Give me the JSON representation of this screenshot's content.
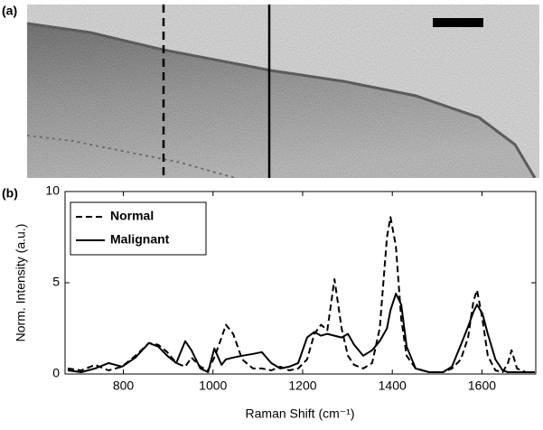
{
  "panel_a": {
    "label": "(a)"
  },
  "chart_data": {
    "type": "line",
    "panel_label": "(b)",
    "xlabel": "Raman Shift (cm⁻¹)",
    "ylabel": "Norm. Intensity (a.u.)",
    "x": [
      676,
      706,
      737,
      767,
      797,
      827,
      857,
      878,
      898,
      918,
      938,
      952,
      972,
      989,
      1003,
      1019,
      1029,
      1045,
      1065,
      1089,
      1109,
      1130,
      1150,
      1170,
      1190,
      1210,
      1226,
      1241,
      1255,
      1271,
      1287,
      1301,
      1315,
      1335,
      1355,
      1372,
      1388,
      1396,
      1408,
      1420,
      1432,
      1452,
      1482,
      1513,
      1533,
      1553,
      1569,
      1581,
      1589,
      1601,
      1613,
      1630,
      1646,
      1658,
      1666,
      1678,
      1698,
      1718
    ],
    "series": [
      {
        "name": "Normal",
        "color": "#000000",
        "linestyle": "dashed",
        "values": [
          0.3,
          0.2,
          0.5,
          0.2,
          0.4,
          1.0,
          1.7,
          1.6,
          1.2,
          0.6,
          0.4,
          0.9,
          0.4,
          0.2,
          0.9,
          2.0,
          2.7,
          2.2,
          0.8,
          0.3,
          0.3,
          0.2,
          0.4,
          0.2,
          0.3,
          0.8,
          2.2,
          2.7,
          2.4,
          5.2,
          2.5,
          1.0,
          0.5,
          0.3,
          0.6,
          2.5,
          7.5,
          8.6,
          7.0,
          3.0,
          1.0,
          0.3,
          0.1,
          0.1,
          0.3,
          0.8,
          2.0,
          4.0,
          4.6,
          3.0,
          1.0,
          0.2,
          0.1,
          0.6,
          1.3,
          0.3,
          0.1,
          0.1
        ]
      },
      {
        "name": "Malignant",
        "color": "#000000",
        "linestyle": "solid",
        "values": [
          0.2,
          0.1,
          0.3,
          0.6,
          0.4,
          0.9,
          1.7,
          1.5,
          1.0,
          0.6,
          1.8,
          1.3,
          0.3,
          0.1,
          1.4,
          0.5,
          0.8,
          0.9,
          1.0,
          1.1,
          1.2,
          0.6,
          0.3,
          0.4,
          0.6,
          2.0,
          2.3,
          2.1,
          2.2,
          2.1,
          2.0,
          2.2,
          1.6,
          1.0,
          1.3,
          1.8,
          2.5,
          3.5,
          4.4,
          3.8,
          1.5,
          0.3,
          0.1,
          0.1,
          0.4,
          1.6,
          2.6,
          3.4,
          3.8,
          3.3,
          2.2,
          0.8,
          0.2,
          0.1,
          0.1,
          0.1,
          0.1,
          0.1
        ]
      }
    ],
    "xlim": [
      670,
      1720
    ],
    "ylim": [
      0,
      10
    ],
    "xticks": [
      800,
      1000,
      1200,
      1400,
      1600
    ],
    "yticks": [
      0,
      5,
      10
    ],
    "legend": "upper left"
  }
}
